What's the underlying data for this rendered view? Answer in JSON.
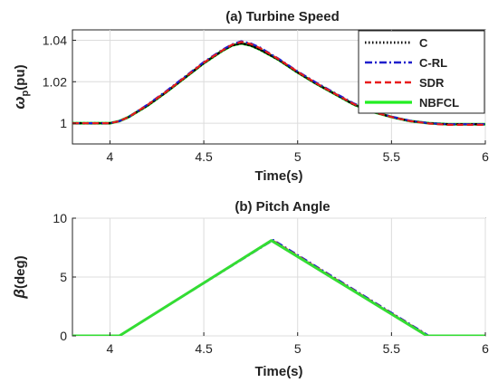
{
  "chart_data": [
    {
      "type": "line",
      "title": "(a)  Turbine Speed",
      "xlabel": "Time(s)",
      "ylabel_main": "ω",
      "ylabel_sub": "p",
      "ylabel_tail": "(pu)",
      "xlim": [
        3.8,
        6.0
      ],
      "ylim": [
        0.99,
        1.045
      ],
      "xticks": [
        4,
        4.5,
        5,
        5.5,
        6
      ],
      "xtick_labels": [
        "4",
        "4.5",
        "5",
        "5.5",
        "6"
      ],
      "yticks": [
        1,
        1.02,
        1.04
      ],
      "ytick_labels": [
        "1",
        "1.02",
        "1.04"
      ],
      "grid": true,
      "legend_position": "top-right",
      "series": [
        {
          "name": "C",
          "color": "#000000",
          "style": "dotted",
          "x": [
            3.8,
            4.0,
            4.05,
            4.1,
            4.2,
            4.3,
            4.4,
            4.5,
            4.6,
            4.65,
            4.7,
            4.75,
            4.8,
            4.9,
            5.0,
            5.1,
            5.2,
            5.3,
            5.4,
            5.5,
            5.6,
            5.7,
            5.8,
            6.0
          ],
          "y": [
            1.0,
            1.0,
            1.001,
            1.003,
            1.0085,
            1.015,
            1.022,
            1.029,
            1.035,
            1.0375,
            1.0385,
            1.0375,
            1.0355,
            1.0305,
            1.0245,
            1.019,
            1.014,
            1.009,
            1.0055,
            1.003,
            1.001,
            1.0,
            0.9995,
            0.9995
          ]
        },
        {
          "name": "C-RL",
          "color": "#1f1fcc",
          "style": "dashdot",
          "x": [
            3.8,
            4.0,
            4.05,
            4.1,
            4.2,
            4.3,
            4.4,
            4.5,
            4.6,
            4.65,
            4.7,
            4.75,
            4.8,
            4.9,
            5.0,
            5.1,
            5.2,
            5.3,
            5.4,
            5.5,
            5.6,
            5.7,
            5.8,
            6.0
          ],
          "y": [
            1.0,
            1.0,
            1.001,
            1.003,
            1.009,
            1.0155,
            1.0225,
            1.0295,
            1.0355,
            1.038,
            1.0395,
            1.0385,
            1.0365,
            1.031,
            1.025,
            1.0195,
            1.0145,
            1.0095,
            1.0058,
            1.0032,
            1.0012,
            1.0,
            0.9995,
            0.9995
          ]
        },
        {
          "name": "SDR",
          "color": "#e81c1c",
          "style": "dashed",
          "x": [
            3.8,
            4.0,
            4.05,
            4.1,
            4.2,
            4.3,
            4.4,
            4.5,
            4.6,
            4.65,
            4.7,
            4.75,
            4.8,
            4.9,
            5.0,
            5.1,
            5.2,
            5.3,
            5.4,
            5.5,
            5.6,
            5.7,
            5.8,
            6.0
          ],
          "y": [
            1.0,
            1.0,
            1.001,
            1.003,
            1.0088,
            1.0152,
            1.0222,
            1.0292,
            1.0352,
            1.0378,
            1.0392,
            1.0382,
            1.0362,
            1.0308,
            1.0248,
            1.0192,
            1.0142,
            1.0092,
            1.0055,
            1.003,
            1.001,
            0.9998,
            0.9992,
            0.9992
          ]
        },
        {
          "name": "NBFCL",
          "color": "#22ee22",
          "style": "solid",
          "x": [
            3.8,
            4.0,
            4.05,
            4.1,
            4.2,
            4.3,
            4.4,
            4.5,
            4.6,
            4.65,
            4.7,
            4.75,
            4.8,
            4.9,
            5.0,
            5.1,
            5.2,
            5.3,
            5.4,
            5.5,
            5.6,
            5.7,
            5.8,
            6.0
          ],
          "y": [
            1.0,
            1.0,
            1.001,
            1.003,
            1.0085,
            1.015,
            1.022,
            1.029,
            1.035,
            1.0375,
            1.0385,
            1.0375,
            1.0355,
            1.0305,
            1.0245,
            1.019,
            1.014,
            1.009,
            1.0055,
            1.003,
            1.001,
            1.0,
            0.9995,
            0.9995
          ]
        }
      ]
    },
    {
      "type": "line",
      "title": "(b) Pitch Angle",
      "xlabel": "Time(s)",
      "ylabel_main": "β",
      "ylabel_sub": "",
      "ylabel_tail": "(deg)",
      "xlim": [
        3.8,
        6.0
      ],
      "ylim": [
        0,
        10
      ],
      "xticks": [
        4,
        4.5,
        5,
        5.5,
        6
      ],
      "xtick_labels": [
        "4",
        "4.5",
        "5",
        "5.5",
        "6"
      ],
      "yticks": [
        0,
        5,
        10
      ],
      "ytick_labels": [
        "0",
        "5",
        "10"
      ],
      "grid": true,
      "series": [
        {
          "name": "C",
          "color": "#000000",
          "style": "dotted",
          "x": [
            3.8,
            4.05,
            4.86,
            5.69,
            6.0
          ],
          "y": [
            0,
            0,
            8.1,
            0,
            0
          ]
        },
        {
          "name": "C-RL",
          "color": "#1f1fcc",
          "style": "dashdot",
          "x": [
            3.8,
            4.05,
            4.87,
            5.7,
            6.0
          ],
          "y": [
            0,
            0,
            8.15,
            0,
            0
          ]
        },
        {
          "name": "SDR",
          "color": "#e81c1c",
          "style": "dashed",
          "x": [
            3.8,
            4.05,
            4.865,
            5.695,
            6.0
          ],
          "y": [
            0,
            0,
            8.12,
            0,
            0
          ]
        },
        {
          "name": "NBFCL",
          "color": "#33dd33",
          "style": "solid",
          "x": [
            3.8,
            4.05,
            4.86,
            5.69,
            6.0
          ],
          "y": [
            0,
            0,
            8.1,
            0,
            0
          ]
        }
      ]
    }
  ]
}
